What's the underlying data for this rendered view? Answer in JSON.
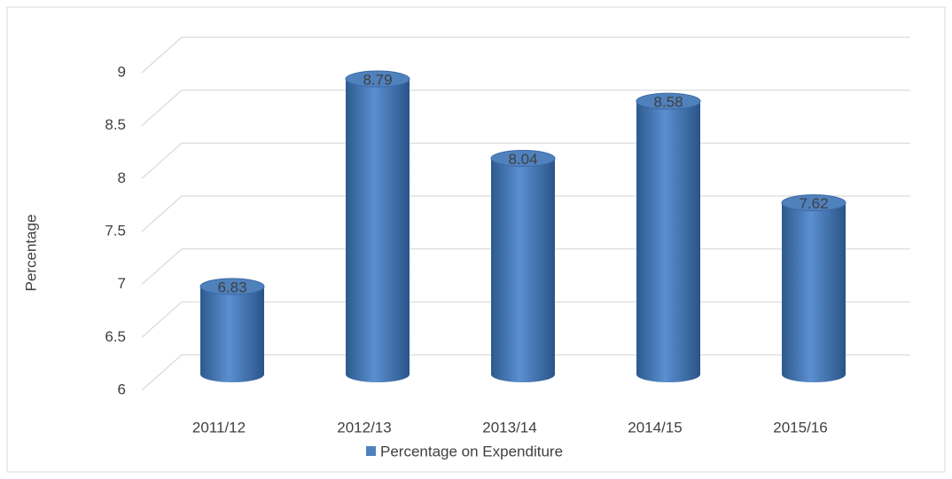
{
  "chart_data": {
    "type": "bar",
    "categories": [
      "2011/12",
      "2012/13",
      "2013/14",
      "2014/15",
      "2015/16"
    ],
    "series": [
      {
        "name": "Percentage on Expenditure",
        "color": "#4f81bd",
        "values": [
          6.83,
          8.79,
          8.04,
          8.58,
          7.62
        ]
      }
    ],
    "y_label": "Percentage",
    "ylim": [
      6,
      9
    ],
    "yticks": [
      6,
      6.5,
      7,
      7.5,
      8,
      8.5,
      9
    ],
    "grid": true,
    "legend": "bottom"
  }
}
